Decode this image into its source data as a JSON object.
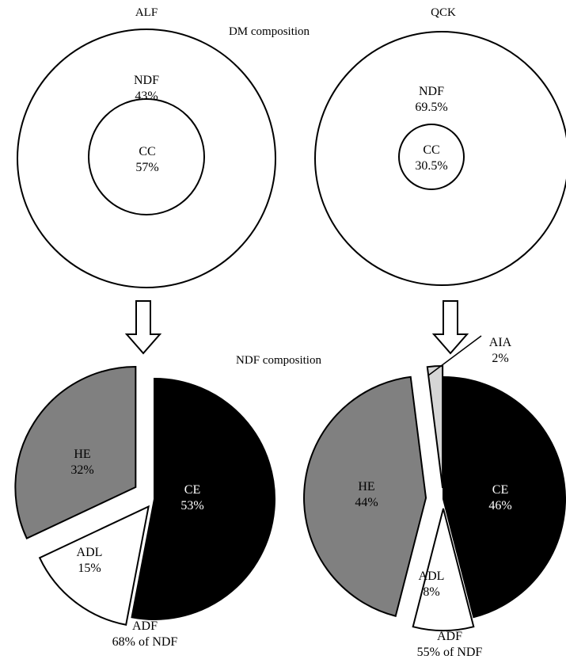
{
  "titles": {
    "dm": "DM composition",
    "ndf": "NDF composition"
  },
  "colors": {
    "CE": "#000000",
    "HE": "#808080",
    "ADL": "#ffffff",
    "AIA": "#d6d6d6",
    "outline": "#000000"
  },
  "chart_data": [
    {
      "type": "pie",
      "panel": "ALF DM composition",
      "label": "ALF",
      "slices": [
        {
          "name": "NDF",
          "value": 43,
          "value_label": "43%"
        },
        {
          "name": "CC",
          "value": 57,
          "value_label": "57%"
        }
      ]
    },
    {
      "type": "pie",
      "panel": "QCK DM composition",
      "label": "QCK",
      "slices": [
        {
          "name": "NDF",
          "value": 69.5,
          "value_label": "69.5%"
        },
        {
          "name": "CC",
          "value": 30.5,
          "value_label": "30.5%"
        }
      ]
    },
    {
      "type": "pie",
      "panel": "ALF NDF composition",
      "slices": [
        {
          "name": "CE",
          "value": 53,
          "value_label": "53%",
          "color": "#000000"
        },
        {
          "name": "ADL",
          "value": 15,
          "value_label": "15%",
          "color": "#ffffff"
        },
        {
          "name": "HE",
          "value": 32,
          "value_label": "32%",
          "color": "#808080"
        }
      ],
      "annotation": {
        "line1": "ADF",
        "line2": "68% of NDF"
      }
    },
    {
      "type": "pie",
      "panel": "QCK NDF composition",
      "slices": [
        {
          "name": "CE",
          "value": 46,
          "value_label": "46%",
          "color": "#000000"
        },
        {
          "name": "ADL",
          "value": 8,
          "value_label": "8%",
          "color": "#ffffff"
        },
        {
          "name": "HE",
          "value": 44,
          "value_label": "44%",
          "color": "#808080"
        },
        {
          "name": "AIA",
          "value": 2,
          "value_label": "2%",
          "color": "#d6d6d6"
        }
      ],
      "annotation": {
        "line1": "ADF",
        "line2": "55% of NDF"
      }
    }
  ]
}
